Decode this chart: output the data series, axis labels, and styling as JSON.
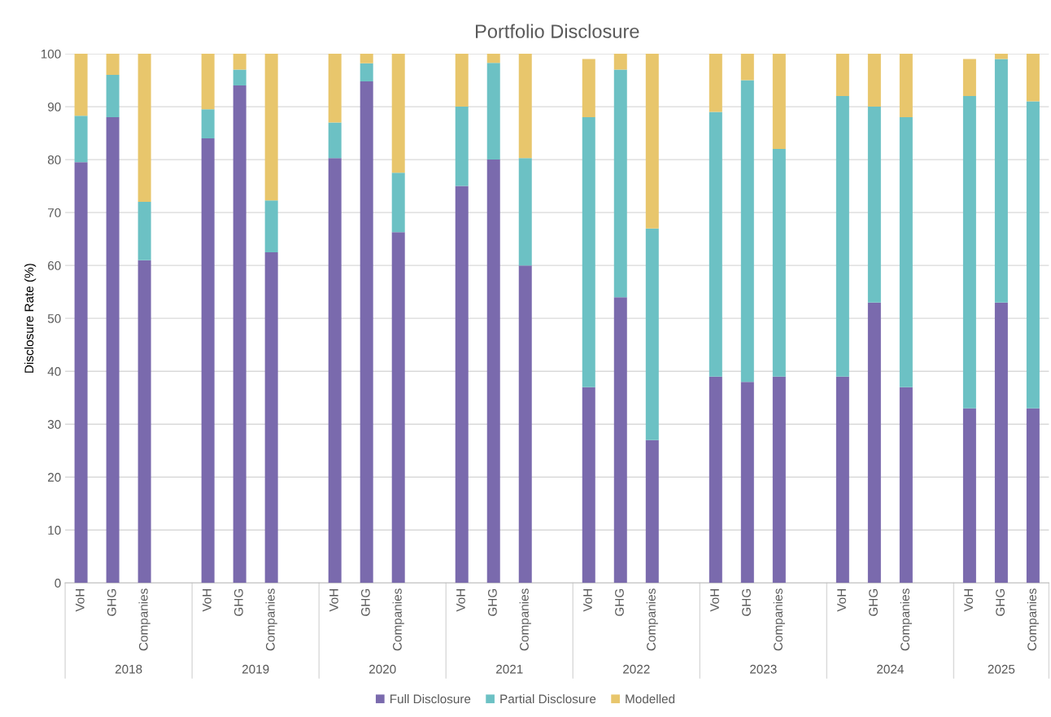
{
  "chart_data": {
    "type": "bar",
    "title": "Portfolio Disclosure",
    "ylabel": "Disclosure Rate (%)",
    "categories": [
      "VoH",
      "GHG",
      "Companies",
      null,
      "VoH",
      "GHG",
      "Companies",
      null,
      "VoH",
      "GHG",
      "Companies",
      null,
      "VoH",
      "GHG",
      "Companies",
      null,
      "VoH",
      "GHG",
      "Companies",
      null,
      "VoH",
      "GHG",
      "Companies",
      null,
      "VoH",
      "GHG",
      "Companies",
      null,
      "VoH",
      "GHG",
      "Companies"
    ],
    "annotations": [
      "2018",
      "2019",
      "2020",
      "2021",
      "2022",
      "2023",
      "2024",
      "2025"
    ],
    "stacked": true,
    "series": [
      {
        "name": "Full Disclosure",
        "color": "#7a6aad",
        "values": [
          79.5,
          88,
          61,
          null,
          84,
          94,
          62.5,
          null,
          80.3,
          94.8,
          66.3,
          null,
          75,
          80,
          60,
          null,
          37,
          54,
          27,
          null,
          39,
          38,
          39,
          null,
          39,
          53,
          37,
          null,
          33,
          53,
          33
        ]
      },
      {
        "name": "Partial Disclosure",
        "color": "#6cc1c4",
        "values": [
          8.8,
          8,
          11,
          null,
          5.5,
          3,
          9.8,
          null,
          6.7,
          3.4,
          11.2,
          null,
          15,
          18.3,
          20.3,
          null,
          51,
          43,
          40,
          null,
          50,
          57,
          43,
          null,
          53,
          37,
          51,
          null,
          59,
          46,
          58
        ]
      },
      {
        "name": "Modelled",
        "color": "#e8c66c",
        "values": [
          11.7,
          4,
          28,
          null,
          10.5,
          3,
          27.7,
          null,
          13,
          1.8,
          22.5,
          null,
          10,
          1.7,
          19.7,
          null,
          11,
          3,
          33,
          null,
          11,
          5,
          18,
          null,
          8,
          10,
          12,
          null,
          7,
          1,
          9
        ]
      }
    ],
    "ylim": [
      0,
      100
    ],
    "yticks": [
      0,
      10,
      20,
      30,
      40,
      50,
      60,
      70,
      80,
      90,
      100
    ],
    "grid": "y",
    "legend": "bottom"
  }
}
